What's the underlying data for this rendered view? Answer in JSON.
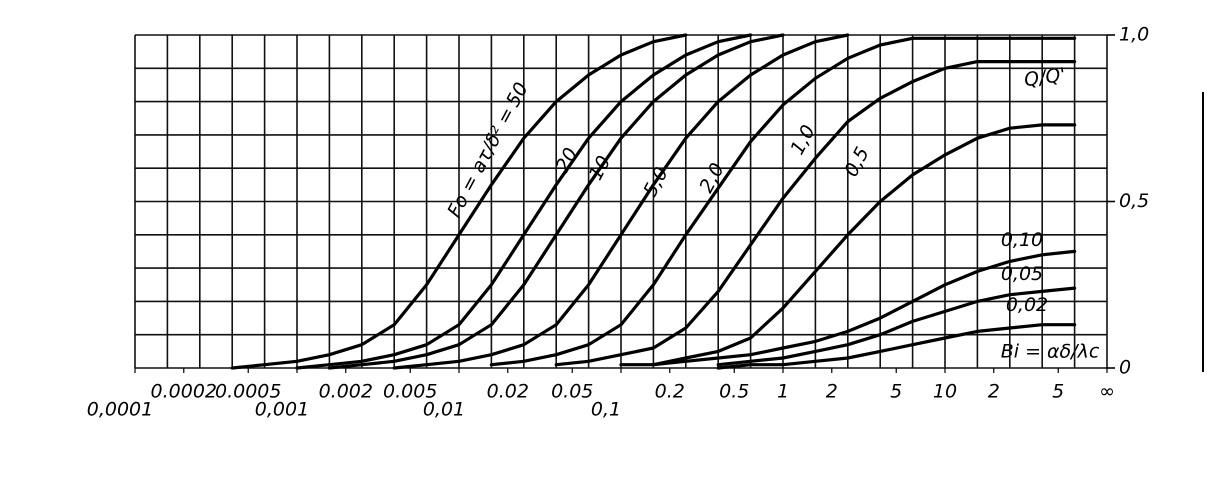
{
  "chart_data": {
    "type": "line",
    "fo_label": "Fo = aτ/δ² =",
    "y_annotation": "Q/Q'",
    "x_annotation": "Bi = αδ/λc",
    "log_x": true,
    "grid": true,
    "color": "#000000",
    "xlim": [
      0.0001,
      100
    ],
    "ylim": [
      0,
      1
    ],
    "xticks": [
      {
        "value": 0.0001,
        "label": "0,0001"
      },
      0.0002,
      0.0005,
      {
        "value": 0.001,
        "label": "0,001"
      },
      0.002,
      0.005,
      {
        "value": 0.01,
        "label": "0,01"
      },
      0.02,
      0.05,
      {
        "value": 0.1,
        "label": "0,1"
      },
      0.2,
      0.5,
      1,
      2,
      5,
      10,
      {
        "value": 20,
        "label": "2"
      },
      {
        "value": 50,
        "label": "5"
      },
      {
        "value": 100,
        "label": "∞"
      }
    ],
    "yticks": [
      0,
      {
        "value": 0.5,
        "label": "0,5"
      },
      {
        "value": 1,
        "label": "1,0"
      }
    ],
    "ygrid": [
      0,
      0.1,
      0.2,
      0.3,
      0.4,
      0.5,
      0.6,
      0.7,
      0.8,
      0.9,
      1
    ],
    "x": [
      0.0001,
      0.0001585,
      0.0002512,
      0.0003981,
      0.000631,
      0.001,
      0.001585,
      0.002512,
      0.003981,
      0.00631,
      0.01,
      0.01585,
      0.02512,
      0.03981,
      0.0631,
      0.1,
      0.1585,
      0.2512,
      0.3981,
      0.631,
      1,
      1.585,
      2.512,
      3.981,
      6.31,
      10,
      15.85,
      25.12,
      39.81,
      63.1,
      100
    ],
    "series": [
      {
        "name": "50",
        "values": [
          null,
          null,
          null,
          0,
          0.01,
          0.02,
          0.04,
          0.07,
          0.13,
          0.25,
          0.4,
          0.55,
          0.69,
          0.8,
          0.88,
          0.94,
          0.98,
          1,
          null,
          null,
          null,
          null,
          null,
          null,
          null,
          null,
          null,
          null,
          null,
          null,
          null
        ]
      },
      {
        "name": "20",
        "values": [
          null,
          null,
          null,
          null,
          null,
          0,
          0.01,
          0.02,
          0.04,
          0.07,
          0.13,
          0.25,
          0.4,
          0.55,
          0.69,
          0.8,
          0.88,
          0.94,
          0.98,
          1,
          null,
          null,
          null,
          null,
          null,
          null,
          null,
          null,
          null,
          null,
          null
        ]
      },
      {
        "name": "10",
        "values": [
          null,
          null,
          null,
          null,
          null,
          null,
          0,
          0.01,
          0.02,
          0.04,
          0.07,
          0.13,
          0.25,
          0.4,
          0.55,
          0.69,
          0.8,
          0.88,
          0.94,
          0.98,
          1,
          null,
          null,
          null,
          null,
          null,
          null,
          null,
          null,
          null,
          null
        ]
      },
      {
        "name": "5,0",
        "values": [
          null,
          null,
          null,
          null,
          null,
          null,
          null,
          null,
          0,
          0.01,
          0.02,
          0.04,
          0.07,
          0.13,
          0.25,
          0.4,
          0.55,
          0.69,
          0.8,
          0.88,
          0.94,
          0.98,
          1,
          null,
          null,
          null,
          null,
          null,
          null,
          null,
          null
        ]
      },
      {
        "name": "2,0",
        "values": [
          null,
          null,
          null,
          null,
          null,
          null,
          null,
          null,
          null,
          null,
          null,
          0.01,
          0.02,
          0.04,
          0.07,
          0.13,
          0.25,
          0.4,
          0.54,
          0.68,
          0.79,
          0.87,
          0.93,
          0.97,
          0.99,
          0.99,
          0.99,
          0.99,
          0.99,
          0.99,
          null
        ]
      },
      {
        "name": "1,0",
        "values": [
          null,
          null,
          null,
          null,
          null,
          null,
          null,
          null,
          null,
          null,
          null,
          null,
          null,
          0.01,
          0.02,
          0.04,
          0.06,
          0.12,
          0.23,
          0.37,
          0.51,
          0.63,
          0.74,
          0.81,
          0.86,
          0.9,
          0.92,
          0.92,
          0.92,
          0.92,
          null
        ]
      },
      {
        "name": "0,5",
        "values": [
          null,
          null,
          null,
          null,
          null,
          null,
          null,
          null,
          null,
          null,
          null,
          null,
          null,
          null,
          null,
          0.01,
          0.01,
          0.03,
          0.05,
          0.09,
          0.18,
          0.29,
          0.4,
          0.5,
          0.58,
          0.64,
          0.69,
          0.72,
          0.73,
          0.73,
          null
        ]
      },
      {
        "name": "0,10",
        "values": [
          null,
          null,
          null,
          null,
          null,
          null,
          null,
          null,
          null,
          null,
          null,
          null,
          null,
          null,
          null,
          null,
          0.01,
          0.02,
          0.03,
          0.04,
          0.06,
          0.08,
          0.11,
          0.15,
          0.2,
          0.25,
          0.29,
          0.32,
          0.34,
          0.35,
          null
        ]
      },
      {
        "name": "0,05",
        "values": [
          null,
          null,
          null,
          null,
          null,
          null,
          null,
          null,
          null,
          null,
          null,
          null,
          null,
          null,
          null,
          null,
          null,
          null,
          0.01,
          0.02,
          0.03,
          0.05,
          0.07,
          0.1,
          0.14,
          0.17,
          0.2,
          0.22,
          0.23,
          0.24,
          null
        ]
      },
      {
        "name": "0,02",
        "values": [
          null,
          null,
          null,
          null,
          null,
          null,
          null,
          null,
          null,
          null,
          null,
          null,
          null,
          null,
          null,
          null,
          null,
          null,
          0,
          0.01,
          0.01,
          0.02,
          0.03,
          0.05,
          0.07,
          0.09,
          0.11,
          0.12,
          0.13,
          0.13,
          null
        ]
      }
    ]
  }
}
